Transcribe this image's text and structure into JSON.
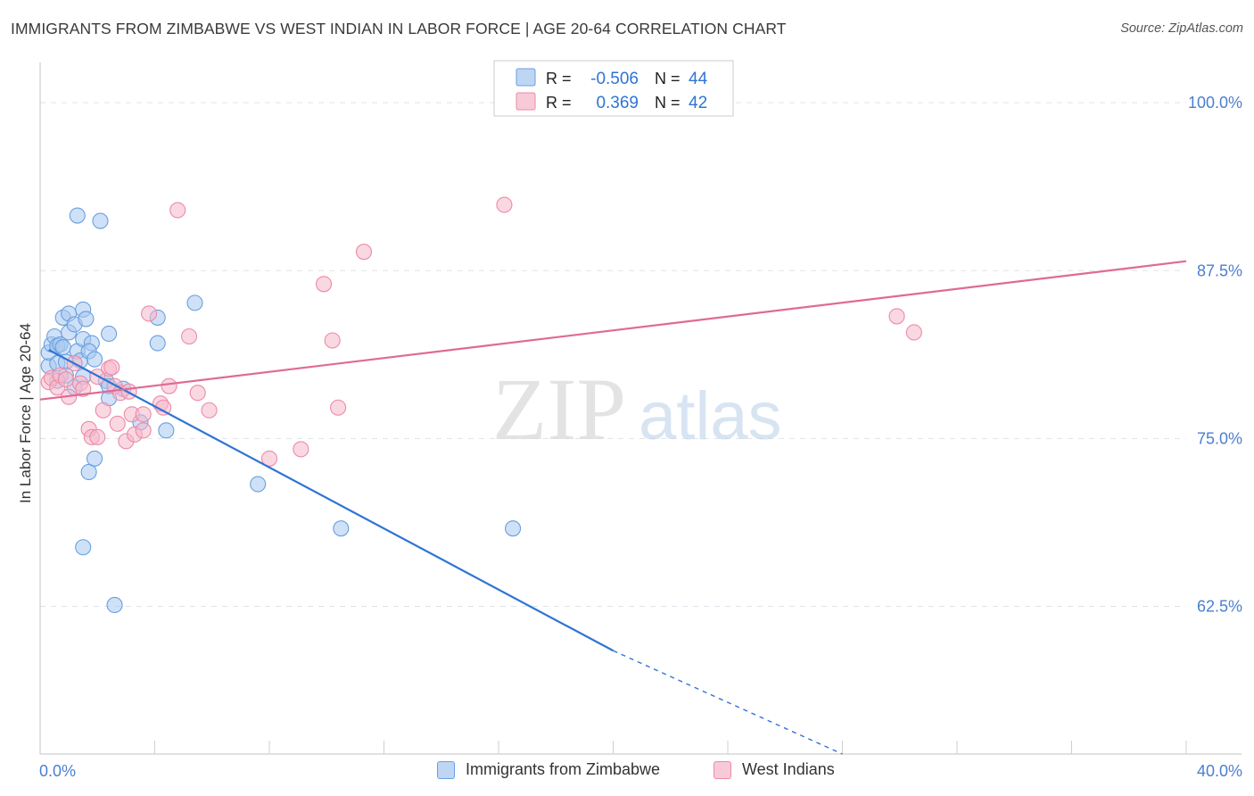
{
  "title": "IMMIGRANTS FROM ZIMBABWE VS WEST INDIAN IN LABOR FORCE | AGE 20-64 CORRELATION CHART",
  "source": "Source: ZipAtlas.com",
  "watermark": {
    "zip": "ZIP",
    "atlas": "atlas"
  },
  "colors": {
    "blue_fill": "#a8c8f0",
    "blue_stroke": "#6a9fe0",
    "blue_line": "#2f74d4",
    "pink_fill": "#f6b8cb",
    "pink_stroke": "#ec8aa8",
    "pink_line": "#e06a94",
    "axis_label": "#4a7fd0",
    "grid": "#dde3ea"
  },
  "legend_stats": [
    {
      "r_label": "R =",
      "r_value": "-0.506",
      "n_label": "N =",
      "n_value": "44",
      "series": "zimbabwe"
    },
    {
      "r_label": "R =",
      "r_value": "0.369",
      "n_label": "N =",
      "n_value": "42",
      "series": "westindian"
    }
  ],
  "chart_data": {
    "type": "scatter",
    "xlabel": "",
    "ylabel": "In Labor Force | Age 20-64",
    "xlim": [
      0,
      40
    ],
    "ylim": [
      51.5,
      103
    ],
    "x_tick_labels": [
      "0.0%",
      "40.0%"
    ],
    "y_ticks": [
      62.5,
      75.0,
      87.5,
      100.0
    ],
    "y_tick_labels": [
      "62.5%",
      "75.0%",
      "87.5%",
      "100.0%"
    ],
    "grid": true,
    "legend_position": "bottom",
    "series": [
      {
        "name": "Immigrants from Zimbabwe",
        "key": "zimbabwe",
        "points": [
          [
            0.3,
            80.4
          ],
          [
            0.3,
            81.4
          ],
          [
            0.4,
            82.0
          ],
          [
            0.5,
            82.6
          ],
          [
            0.6,
            80.6
          ],
          [
            0.6,
            81.9
          ],
          [
            0.7,
            82.0
          ],
          [
            0.8,
            84.0
          ],
          [
            0.8,
            81.8
          ],
          [
            0.9,
            80.7
          ],
          [
            1.0,
            84.3
          ],
          [
            1.0,
            82.9
          ],
          [
            0.9,
            79.7
          ],
          [
            0.6,
            79.3
          ],
          [
            1.2,
            83.5
          ],
          [
            1.3,
            81.5
          ],
          [
            1.2,
            78.8
          ],
          [
            1.4,
            80.8
          ],
          [
            1.5,
            84.6
          ],
          [
            1.6,
            83.9
          ],
          [
            1.5,
            82.4
          ],
          [
            1.5,
            79.6
          ],
          [
            1.8,
            82.1
          ],
          [
            1.7,
            81.5
          ],
          [
            1.9,
            80.9
          ],
          [
            2.3,
            79.3
          ],
          [
            2.4,
            78.9
          ],
          [
            2.4,
            82.8
          ],
          [
            2.4,
            78.0
          ],
          [
            2.9,
            78.7
          ],
          [
            1.7,
            72.5
          ],
          [
            1.9,
            73.5
          ],
          [
            1.5,
            66.9
          ],
          [
            1.3,
            91.6
          ],
          [
            2.1,
            91.2
          ],
          [
            4.1,
            82.1
          ],
          [
            4.1,
            84.0
          ],
          [
            5.4,
            85.1
          ],
          [
            4.4,
            75.6
          ],
          [
            3.5,
            76.2
          ],
          [
            7.6,
            71.6
          ],
          [
            10.5,
            68.3
          ],
          [
            16.5,
            68.3
          ],
          [
            2.6,
            62.6
          ]
        ]
      },
      {
        "name": "West Indians",
        "key": "westindian",
        "points": [
          [
            0.3,
            79.2
          ],
          [
            0.4,
            79.5
          ],
          [
            0.6,
            78.8
          ],
          [
            0.7,
            79.7
          ],
          [
            0.9,
            79.4
          ],
          [
            1.0,
            78.1
          ],
          [
            1.2,
            80.6
          ],
          [
            1.4,
            79.1
          ],
          [
            1.5,
            78.7
          ],
          [
            1.7,
            75.7
          ],
          [
            1.8,
            75.1
          ],
          [
            2.0,
            75.1
          ],
          [
            2.2,
            77.1
          ],
          [
            2.4,
            80.2
          ],
          [
            2.5,
            80.3
          ],
          [
            2.6,
            78.9
          ],
          [
            2.7,
            76.1
          ],
          [
            2.8,
            78.4
          ],
          [
            3.0,
            74.8
          ],
          [
            3.1,
            78.5
          ],
          [
            3.2,
            76.8
          ],
          [
            3.3,
            75.3
          ],
          [
            3.6,
            76.8
          ],
          [
            3.6,
            75.6
          ],
          [
            3.8,
            84.3
          ],
          [
            4.2,
            77.6
          ],
          [
            4.3,
            77.3
          ],
          [
            4.5,
            78.9
          ],
          [
            4.8,
            92.0
          ],
          [
            5.2,
            82.6
          ],
          [
            5.5,
            78.4
          ],
          [
            5.9,
            77.1
          ],
          [
            8.0,
            73.5
          ],
          [
            9.1,
            74.2
          ],
          [
            9.9,
            86.5
          ],
          [
            10.2,
            82.3
          ],
          [
            10.4,
            77.3
          ],
          [
            11.3,
            88.9
          ],
          [
            16.2,
            92.4
          ],
          [
            29.9,
            84.1
          ],
          [
            30.5,
            82.9
          ],
          [
            2.0,
            79.6
          ]
        ]
      }
    ],
    "trendlines": [
      {
        "series": "zimbabwe",
        "x": [
          0.3,
          20.0
        ],
        "y": [
          81.6,
          59.2
        ],
        "dashed_to": [
          28.0,
          51.5
        ]
      },
      {
        "series": "westindian",
        "x": [
          0.0,
          40.0
        ],
        "y": [
          77.9,
          88.2
        ]
      }
    ]
  }
}
